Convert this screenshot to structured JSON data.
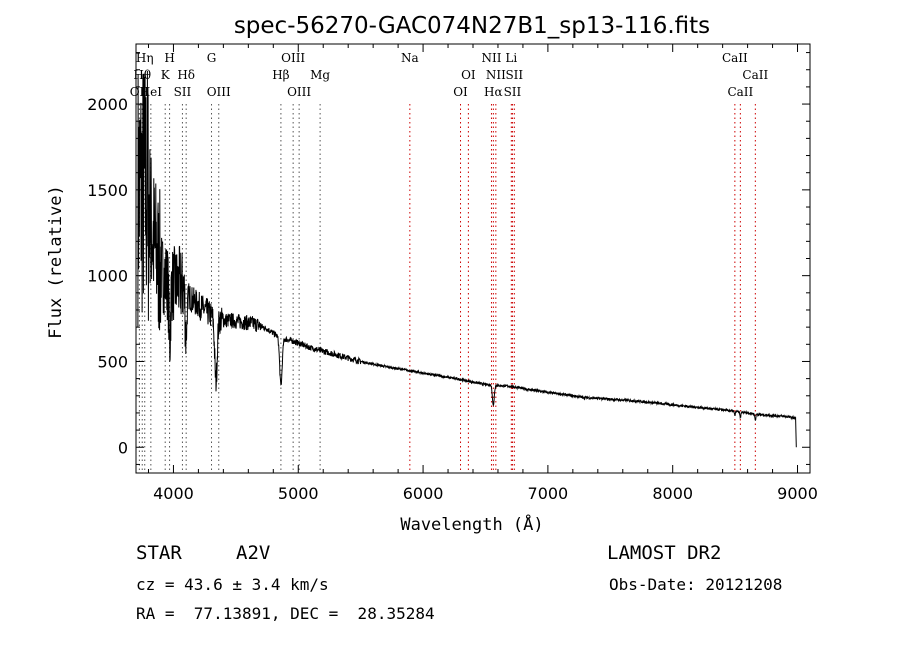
{
  "chart_data": {
    "type": "line",
    "title": "spec-56270-GAC074N27B1_sp13-116.fits",
    "xlabel": "Wavelength (Å)",
    "ylabel": "Flux (relative)",
    "xlim": [
      3700,
      9100
    ],
    "ylim": [
      -150,
      2350
    ],
    "xticks": [
      4000,
      5000,
      6000,
      7000,
      8000,
      9000
    ],
    "yticks": [
      0,
      500,
      1000,
      1500,
      2000
    ],
    "xtick_labels": [
      "4000",
      "5000",
      "6000",
      "7000",
      "8000",
      "9000"
    ],
    "ytick_labels": [
      "0",
      "500",
      "1000",
      "1500",
      "2000"
    ],
    "continuum_points": [
      [
        3790,
        1500
      ],
      [
        3830,
        1250
      ],
      [
        3870,
        1100
      ],
      [
        3920,
        1000
      ],
      [
        3970,
        950
      ],
      [
        4050,
        950
      ],
      [
        4150,
        860
      ],
      [
        4250,
        800
      ],
      [
        4350,
        740
      ],
      [
        4450,
        740
      ],
      [
        4550,
        730
      ],
      [
        4650,
        720
      ],
      [
        4750,
        690
      ],
      [
        4850,
        640
      ],
      [
        4950,
        620
      ],
      [
        5100,
        580
      ],
      [
        5300,
        540
      ],
      [
        5500,
        500
      ],
      [
        5700,
        470
      ],
      [
        5900,
        445
      ],
      [
        6100,
        420
      ],
      [
        6300,
        395
      ],
      [
        6500,
        365
      ],
      [
        6700,
        355
      ],
      [
        6900,
        330
      ],
      [
        7100,
        310
      ],
      [
        7300,
        290
      ],
      [
        7500,
        280
      ],
      [
        7700,
        270
      ],
      [
        7900,
        255
      ],
      [
        8100,
        240
      ],
      [
        8300,
        225
      ],
      [
        8500,
        210
      ],
      [
        8700,
        190
      ],
      [
        8900,
        180
      ],
      [
        8985,
        170
      ]
    ],
    "absorption_features": [
      {
        "center": 4340,
        "depth": 360,
        "width": 14
      },
      {
        "center": 4861,
        "depth": 280,
        "width": 14
      },
      {
        "center": 4102,
        "depth": 250,
        "width": 10
      },
      {
        "center": 3970,
        "depth": 350,
        "width": 9
      },
      {
        "center": 6563,
        "depth": 120,
        "width": 10
      },
      {
        "center": 8498,
        "depth": 25,
        "width": 6
      },
      {
        "center": 8542,
        "depth": 35,
        "width": 6
      },
      {
        "center": 8662,
        "depth": 35,
        "width": 6
      }
    ],
    "spectral_lines": [
      {
        "name": "OII",
        "wavelength": 3727,
        "color": "#555555",
        "row": 3
      },
      {
        "name": "Hθ",
        "wavelength": 3750,
        "color": "#555555",
        "row": 2
      },
      {
        "name": "Hη",
        "wavelength": 3770,
        "color": "#555555",
        "row": 1
      },
      {
        "name": "HeI",
        "wavelength": 3819,
        "color": "#555555",
        "row": 3
      },
      {
        "name": "K",
        "wavelength": 3934,
        "color": "#555555",
        "row": 2
      },
      {
        "name": "H",
        "wavelength": 3969,
        "color": "#555555",
        "row": 1
      },
      {
        "name": "SII",
        "wavelength": 4072,
        "color": "#555555",
        "row": 3
      },
      {
        "name": "Hδ",
        "wavelength": 4102,
        "color": "#555555",
        "row": 2
      },
      {
        "name": "G",
        "wavelength": 4305,
        "color": "#555555",
        "row": 1
      },
      {
        "name": "OIII",
        "wavelength": 4363,
        "color": "#555555",
        "row": 3
      },
      {
        "name": "Hβ",
        "wavelength": 4861,
        "color": "#555555",
        "row": 2
      },
      {
        "name": "OIII",
        "wavelength": 4959,
        "color": "#555555",
        "row": 1
      },
      {
        "name": "OIII",
        "wavelength": 5007,
        "color": "#555555",
        "row": 3
      },
      {
        "name": "Mg",
        "wavelength": 5175,
        "color": "#555555",
        "row": 2
      },
      {
        "name": "Na",
        "wavelength": 5894,
        "color": "#cc0000",
        "row": 1
      },
      {
        "name": "OI",
        "wavelength": 6300,
        "color": "#cc0000",
        "row": 3
      },
      {
        "name": "OI",
        "wavelength": 6363,
        "color": "#cc0000",
        "row": 2
      },
      {
        "name": "NII",
        "wavelength": 6548,
        "color": "#cc0000",
        "row": 1
      },
      {
        "name": "Hα",
        "wavelength": 6563,
        "color": "#cc0000",
        "row": 3
      },
      {
        "name": "NII",
        "wavelength": 6583,
        "color": "#cc0000",
        "row": 2
      },
      {
        "name": "Li",
        "wavelength": 6707,
        "color": "#cc0000",
        "row": 1
      },
      {
        "name": "SII",
        "wavelength": 6716,
        "color": "#cc0000",
        "row": 3
      },
      {
        "name": "SII",
        "wavelength": 6731,
        "color": "#cc0000",
        "row": 2
      },
      {
        "name": "CaII",
        "wavelength": 8498,
        "color": "#cc0000",
        "row": 1
      },
      {
        "name": "CaII",
        "wavelength": 8542,
        "color": "#cc0000",
        "row": 3
      },
      {
        "name": "CaII",
        "wavelength": 8662,
        "color": "#cc0000",
        "row": 2
      }
    ]
  },
  "info": {
    "object_type": "STAR",
    "subclass": "A2V",
    "survey": "LAMOST DR2",
    "cz": "cz = 43.6 ± 3.4 km/s",
    "obs_date": "Obs-Date: 20121208",
    "coords": "RA =  77.13891, DEC =  28.35284"
  }
}
